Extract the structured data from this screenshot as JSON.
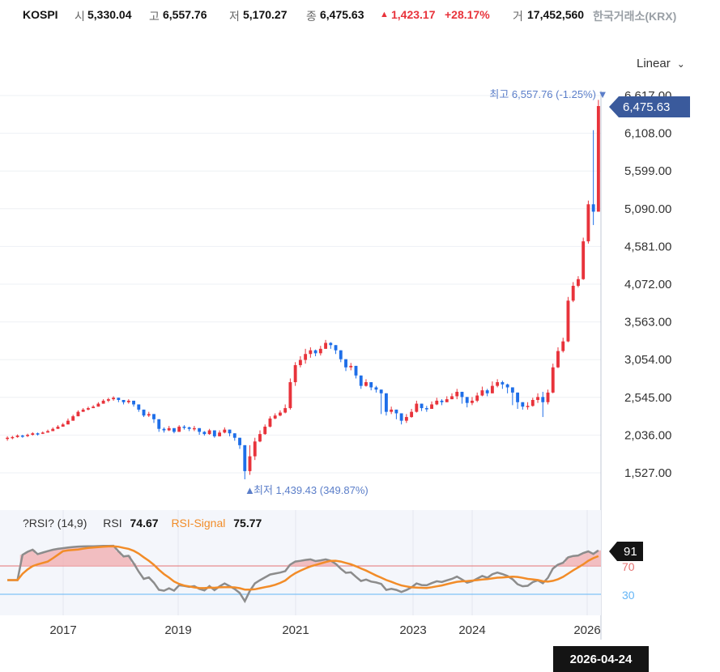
{
  "header": {
    "symbol": "KOSPI",
    "open_label": "시",
    "open": "5,330.04",
    "high_label": "고",
    "high": "6,557.76",
    "low_label": "저",
    "low": "5,170.27",
    "close_label": "종",
    "close": "6,475.63",
    "change_arrow": "▲",
    "change": "1,423.17",
    "change_pct": "+28.17%",
    "volume_label": "거",
    "volume": "17,452,560",
    "exchange": "한국거래소(KRX)"
  },
  "toolbar": {
    "scale_label": "Linear",
    "scale_icon": "chevron-down-icon"
  },
  "price_chart": {
    "y_ticks": [
      "6,617.00",
      "6,108.00",
      "5,599.00",
      "5,090.00",
      "4,581.00",
      "4,072.00",
      "3,563.00",
      "3,054.00",
      "2,545.00",
      "2,036.00",
      "1,527.00"
    ],
    "last_price_label": "6,475.63",
    "high_annotation": "최고 6,557.76 (-1.25%)",
    "low_annotation": "최저 1,439.43 (349.87%)",
    "colors": {
      "up": "#e8333b",
      "down": "#1e6ee8",
      "label_bg": "#3a5a9c",
      "annotation": "#5b7ec9"
    }
  },
  "rsi": {
    "title": "?RSI? (14,9)",
    "rsi_label": "RSI",
    "rsi_value": "74.67",
    "signal_label": "RSI-Signal",
    "signal_value": "75.77",
    "current_tag": "91",
    "level_upper": "70",
    "level_lower": "30",
    "colors": {
      "rsi": "#8c8c8c",
      "signal": "#f28c28",
      "upper_line": "#e57373",
      "lower_line": "#64b5f6"
    }
  },
  "x_axis": {
    "labels": [
      "2017",
      "2019",
      "2021",
      "2023",
      "2024",
      "2026"
    ],
    "crosshair_date": "2026-04-24"
  },
  "chart_data": {
    "type": "candlestick",
    "title": "KOSPI",
    "period": "weekly",
    "y_range": [
      1527,
      6617
    ],
    "series": [
      {
        "name": "KOSPI",
        "close": [
          2000,
          2010,
          2030,
          2025,
          2040,
          2060,
          2055,
          2070,
          2090,
          2120,
          2150,
          2180,
          2230,
          2290,
          2350,
          2380,
          2400,
          2420,
          2460,
          2500,
          2520,
          2540,
          2510,
          2480,
          2500,
          2450,
          2380,
          2300,
          2320,
          2250,
          2120,
          2100,
          2130,
          2080,
          2150,
          2140,
          2120,
          2130,
          2080,
          2050,
          2100,
          2020,
          2070,
          2110,
          2060,
          2000,
          1900,
          1550,
          1750,
          1950,
          2050,
          2150,
          2260,
          2300,
          2340,
          2400,
          2750,
          2980,
          3050,
          3130,
          3180,
          3140,
          3200,
          3280,
          3250,
          3180,
          3060,
          2950,
          2970,
          2840,
          2700,
          2750,
          2680,
          2650,
          2600,
          2350,
          2380,
          2330,
          2230,
          2280,
          2350,
          2460,
          2400,
          2390,
          2450,
          2500,
          2480,
          2520,
          2560,
          2620,
          2550,
          2470,
          2500,
          2570,
          2640,
          2600,
          2700,
          2750,
          2720,
          2680,
          2610,
          2480,
          2420,
          2430,
          2510,
          2550,
          2480,
          2610,
          2950,
          3170,
          3300,
          3850,
          4050,
          4140,
          4650,
          5150,
          5050,
          6475
        ],
        "high": [
          2020,
          2025,
          2045,
          2040,
          2055,
          2075,
          2070,
          2085,
          2110,
          2140,
          2170,
          2200,
          2260,
          2310,
          2370,
          2400,
          2420,
          2440,
          2480,
          2520,
          2540,
          2560,
          2540,
          2510,
          2520,
          2480,
          2410,
          2340,
          2350,
          2280,
          2160,
          2140,
          2160,
          2120,
          2170,
          2170,
          2150,
          2160,
          2110,
          2090,
          2120,
          2060,
          2100,
          2140,
          2100,
          2040,
          1950,
          1800,
          1900,
          2000,
          2100,
          2180,
          2290,
          2330,
          2370,
          2450,
          2800,
          3020,
          3100,
          3200,
          3220,
          3190,
          3240,
          3320,
          3290,
          3230,
          3110,
          3000,
          3010,
          2890,
          2760,
          2790,
          2720,
          2700,
          2650,
          2400,
          2420,
          2370,
          2280,
          2320,
          2390,
          2500,
          2450,
          2430,
          2490,
          2540,
          2520,
          2560,
          2600,
          2660,
          2600,
          2520,
          2550,
          2610,
          2690,
          2660,
          2760,
          2790,
          2770,
          2730,
          2650,
          2530,
          2460,
          2480,
          2540,
          2600,
          2620,
          2650,
          3000,
          3220,
          3350,
          3900,
          4100,
          4180,
          4700,
          5200,
          6150,
          6557.76
        ],
        "low": [
          1960,
          1980,
          2000,
          2000,
          2010,
          2030,
          2030,
          2050,
          2070,
          2090,
          2120,
          2150,
          2200,
          2260,
          2320,
          2350,
          2370,
          2400,
          2430,
          2460,
          2480,
          2500,
          2480,
          2450,
          2460,
          2420,
          2350,
          2280,
          2280,
          2200,
          2080,
          2070,
          2090,
          2060,
          2100,
          2110,
          2090,
          2090,
          2040,
          2030,
          2040,
          2000,
          2030,
          2060,
          2020,
          1960,
          1850,
          1439.43,
          1500,
          1700,
          1940,
          2040,
          2140,
          2250,
          2290,
          2330,
          2380,
          2700,
          2950,
          3000,
          3080,
          3100,
          3110,
          3200,
          3200,
          3130,
          3020,
          2900,
          2910,
          2800,
          2660,
          2690,
          2640,
          2610,
          2320,
          2300,
          2320,
          2250,
          2180,
          2200,
          2270,
          2340,
          2360,
          2350,
          2390,
          2440,
          2440,
          2480,
          2520,
          2520,
          2460,
          2410,
          2440,
          2480,
          2560,
          2560,
          2600,
          2680,
          2660,
          2600,
          2440,
          2390,
          2380,
          2380,
          2420,
          2470,
          2280,
          2450,
          2600,
          2940,
          3150,
          3290,
          3830,
          4030,
          4130,
          4620,
          4870,
          5170.27
        ]
      }
    ],
    "rsi": {
      "period": 14,
      "signal_period": 9,
      "rsi_last": 74.67,
      "signal_last": 75.77,
      "upper_level": 70,
      "lower_level": 30
    }
  }
}
